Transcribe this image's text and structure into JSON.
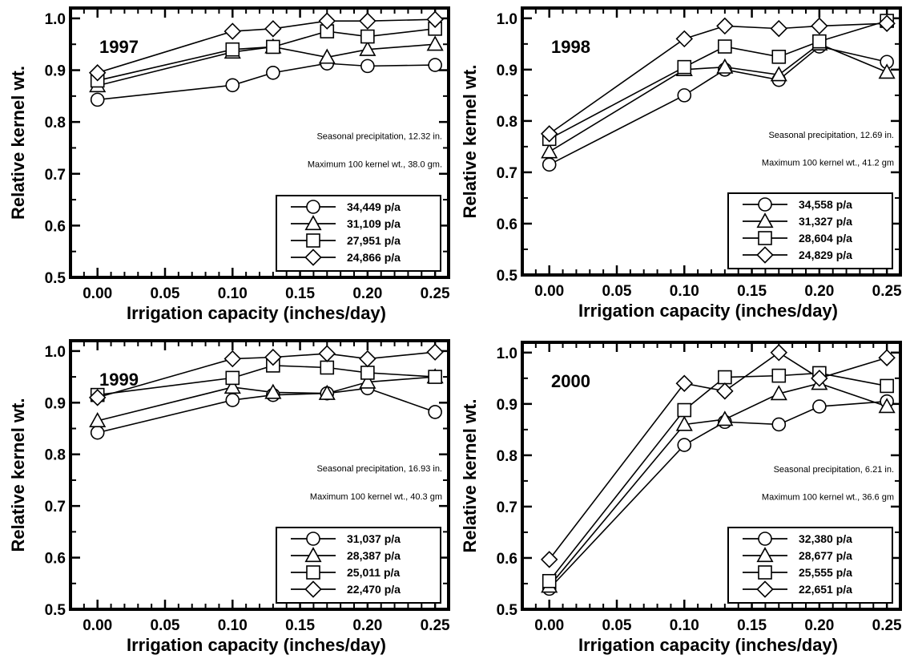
{
  "chart_data": [
    {
      "type": "line",
      "title": "1997",
      "xlabel": "Irrigation capacity (inches/day)",
      "ylabel": "Relative kernel wt.",
      "xlim": [
        -0.02,
        0.26
      ],
      "ylim": [
        0.5,
        1.02
      ],
      "xticks": [
        "0.00",
        "0.05",
        "0.10",
        "0.15",
        "0.20",
        "0.25"
      ],
      "yticks": [
        "0.5",
        "0.6",
        "0.7",
        "0.8",
        "0.9",
        "1.0"
      ],
      "x": [
        0.0,
        0.1,
        0.13,
        0.17,
        0.2,
        0.25
      ],
      "annotations": [
        "Seasonal precipitation, 12.32 in.",
        "Maximum 100 kernel wt., 38.0 gm."
      ],
      "series": [
        {
          "name": "34,449 p/a",
          "marker": "circle",
          "values": [
            0.843,
            0.871,
            0.895,
            0.913,
            0.908,
            0.91
          ]
        },
        {
          "name": "31,109 p/a",
          "marker": "triangle",
          "values": [
            0.87,
            0.935,
            0.945,
            0.925,
            0.94,
            0.95
          ]
        },
        {
          "name": "27,951 p/a",
          "marker": "square",
          "values": [
            0.88,
            0.94,
            0.945,
            0.975,
            0.965,
            0.98
          ]
        },
        {
          "name": "24,866 p/a",
          "marker": "diamond",
          "values": [
            0.895,
            0.975,
            0.98,
            0.995,
            0.995,
            0.998
          ]
        }
      ],
      "legend_position": "bottom-right"
    },
    {
      "type": "line",
      "title": "1998",
      "xlabel": "Irrigation capacity (inches/day)",
      "ylabel": "Relative kernel wt.",
      "xlim": [
        -0.02,
        0.26
      ],
      "ylim": [
        0.5,
        1.02
      ],
      "xticks": [
        "0.00",
        "0.05",
        "0.10",
        "0.15",
        "0.20",
        "0.25"
      ],
      "yticks": [
        "0.5",
        "0.6",
        "0.7",
        "0.8",
        "0.9",
        "1.0"
      ],
      "x": [
        0.0,
        0.1,
        0.13,
        0.17,
        0.2,
        0.25
      ],
      "annotations": [
        "Seasonal precipitation, 12.69 in.",
        "Maximum 100 kernel wt., 41.2 gm"
      ],
      "series": [
        {
          "name": "34,558 p/a",
          "marker": "circle",
          "values": [
            0.715,
            0.85,
            0.9,
            0.88,
            0.945,
            0.915
          ]
        },
        {
          "name": "31,327 p/a",
          "marker": "triangle",
          "values": [
            0.74,
            0.9,
            0.905,
            0.89,
            0.95,
            0.895
          ]
        },
        {
          "name": "28,604 p/a",
          "marker": "square",
          "values": [
            0.765,
            0.905,
            0.945,
            0.925,
            0.955,
            0.995
          ]
        },
        {
          "name": "24,829 p/a",
          "marker": "diamond",
          "values": [
            0.775,
            0.96,
            0.985,
            0.98,
            0.985,
            0.99
          ]
        }
      ],
      "legend_position": "bottom-right"
    },
    {
      "type": "line",
      "title": "1999",
      "xlabel": "Irrigation capacity (inches/day)",
      "ylabel": "Relative kernel wt.",
      "xlim": [
        -0.02,
        0.26
      ],
      "ylim": [
        0.5,
        1.02
      ],
      "xticks": [
        "0.00",
        "0.05",
        "0.10",
        "0.15",
        "0.20",
        "0.25"
      ],
      "yticks": [
        "0.5",
        "0.6",
        "0.7",
        "0.8",
        "0.9",
        "1.0"
      ],
      "x": [
        0.0,
        0.1,
        0.13,
        0.17,
        0.2,
        0.25
      ],
      "annotations": [
        "Seasonal precipitation, 16.93 in.",
        "Maximum 100 kernel wt., 40.3 gm"
      ],
      "series": [
        {
          "name": "31,037 p/a",
          "marker": "circle",
          "values": [
            0.842,
            0.905,
            0.915,
            0.918,
            0.928,
            0.882
          ]
        },
        {
          "name": "28,387 p/a",
          "marker": "triangle",
          "values": [
            0.865,
            0.93,
            0.92,
            0.918,
            0.94,
            0.95
          ]
        },
        {
          "name": "25,011 p/a",
          "marker": "square",
          "values": [
            0.915,
            0.948,
            0.972,
            0.968,
            0.958,
            0.95
          ]
        },
        {
          "name": "22,470 p/a",
          "marker": "diamond",
          "values": [
            0.91,
            0.985,
            0.988,
            0.995,
            0.985,
            0.998
          ]
        }
      ],
      "legend_position": "bottom-right"
    },
    {
      "type": "line",
      "title": "2000",
      "xlabel": "Irrigation capacity (inches/day)",
      "ylabel": "Relative kernel wt.",
      "xlim": [
        -0.02,
        0.26
      ],
      "ylim": [
        0.5,
        1.02
      ],
      "xticks": [
        "0.00",
        "0.05",
        "0.10",
        "0.15",
        "0.20",
        "0.25"
      ],
      "yticks": [
        "0.5",
        "0.6",
        "0.7",
        "0.8",
        "0.9",
        "1.0"
      ],
      "x": [
        0.0,
        0.1,
        0.13,
        0.17,
        0.2,
        0.25
      ],
      "annotations": [
        "Seasonal precipitation, 6.21 in.",
        "Maximum 100 kernel wt., 36.6 gm"
      ],
      "series": [
        {
          "name": "32,380 p/a",
          "marker": "circle",
          "values": [
            0.54,
            0.82,
            0.865,
            0.86,
            0.895,
            0.905
          ]
        },
        {
          "name": "28,677 p/a",
          "marker": "triangle",
          "values": [
            0.545,
            0.86,
            0.87,
            0.92,
            0.94,
            0.895
          ]
        },
        {
          "name": "25,555 p/a",
          "marker": "square",
          "values": [
            0.555,
            0.888,
            0.952,
            0.955,
            0.96,
            0.935
          ]
        },
        {
          "name": "22,651 p/a",
          "marker": "diamond",
          "values": [
            0.597,
            0.94,
            0.925,
            1.0,
            0.95,
            0.99
          ]
        }
      ],
      "legend_position": "bottom-right"
    }
  ]
}
